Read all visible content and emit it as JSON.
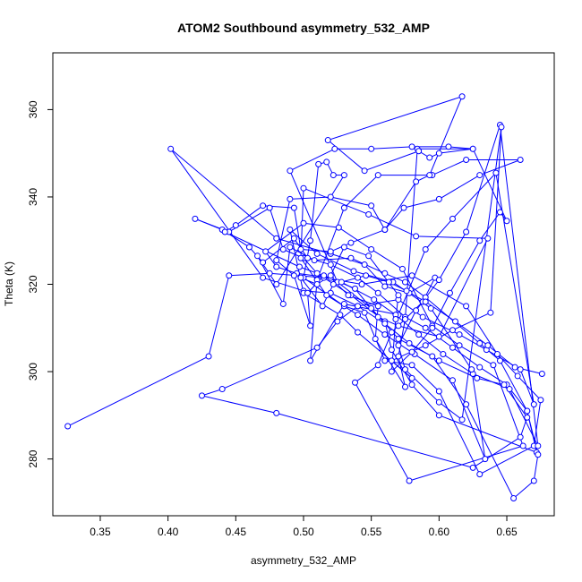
{
  "chart_data": {
    "type": "line",
    "title": "ATOM2 Southbound asymmetry_532_AMP",
    "xlabel": "asymmetry_532_AMP",
    "ylabel": "Theta (K)",
    "xlim": [
      0.315,
      0.685
    ],
    "ylim": [
      267,
      373
    ],
    "x_ticks": [
      0.35,
      0.4,
      0.45,
      0.5,
      0.55,
      0.6,
      0.65
    ],
    "x_tick_labels": [
      "0.35",
      "0.40",
      "0.45",
      "0.50",
      "0.55",
      "0.60",
      "0.65"
    ],
    "y_ticks": [
      280,
      300,
      320,
      340,
      360
    ],
    "y_tick_labels": [
      "280",
      "300",
      "320",
      "340",
      "360"
    ],
    "grid": false,
    "line_style": "overplotted",
    "color": "#0000ff",
    "series": [
      {
        "points": [
          [
            0.326,
            287.5
          ],
          [
            0.43,
            303.5
          ],
          [
            0.445,
            322.0
          ],
          [
            0.475,
            322.5
          ],
          [
            0.515,
            321.5
          ],
          [
            0.543,
            320.0
          ],
          [
            0.58,
            322.0
          ],
          [
            0.62,
            315.0
          ],
          [
            0.643,
            304.0
          ],
          [
            0.658,
            299.0
          ],
          [
            0.675,
            293.5
          ],
          [
            0.67,
            283.0
          ],
          [
            0.63,
            276.5
          ],
          [
            0.6,
            295.5
          ],
          [
            0.58,
            301.5
          ],
          [
            0.56,
            302.5
          ],
          [
            0.545,
            313.5
          ],
          [
            0.53,
            315.0
          ],
          [
            0.5,
            321.5
          ],
          [
            0.505,
            330.0
          ],
          [
            0.511,
            347.5
          ],
          [
            0.517,
            348.0
          ],
          [
            0.522,
            345.0
          ],
          [
            0.53,
            345.0
          ],
          [
            0.48,
            320.0
          ],
          [
            0.466,
            326.5
          ],
          [
            0.485,
            315.5
          ],
          [
            0.49,
            328.5
          ],
          [
            0.508,
            325.5
          ],
          [
            0.535,
            326.0
          ],
          [
            0.56,
            322.5
          ],
          [
            0.575,
            320.5
          ],
          [
            0.59,
            317.0
          ],
          [
            0.63,
            306.5
          ],
          [
            0.645,
            302.5
          ],
          [
            0.665,
            291.0
          ],
          [
            0.672,
            281.5
          ],
          [
            0.6,
            290.0
          ],
          [
            0.58,
            297.0
          ],
          [
            0.565,
            305.0
          ],
          [
            0.56,
            311.5
          ],
          [
            0.535,
            317.5
          ],
          [
            0.51,
            322.5
          ],
          [
            0.5,
            326.0
          ],
          [
            0.485,
            328.0
          ],
          [
            0.475,
            337.5
          ],
          [
            0.445,
            332.0
          ],
          [
            0.42,
            335.0
          ],
          [
            0.44,
            332.5
          ],
          [
            0.46,
            328.5
          ],
          [
            0.47,
            325.0
          ],
          [
            0.493,
            330.5
          ],
          [
            0.503,
            326.0
          ],
          [
            0.52,
            324.5
          ],
          [
            0.54,
            321.5
          ],
          [
            0.555,
            318.0
          ],
          [
            0.575,
            312.5
          ],
          [
            0.59,
            310.0
          ],
          [
            0.61,
            305.5
          ],
          [
            0.63,
            301.0
          ],
          [
            0.65,
            297.0
          ],
          [
            0.665,
            291.0
          ],
          [
            0.673,
            281.0
          ],
          [
            0.67,
            275.0
          ],
          [
            0.655,
            271.0
          ],
          [
            0.62,
            292.5
          ],
          [
            0.595,
            303.5
          ],
          [
            0.57,
            307.5
          ],
          [
            0.55,
            314.5
          ],
          [
            0.525,
            320.5
          ],
          [
            0.49,
            346.0
          ],
          [
            0.523,
            351.0
          ],
          [
            0.55,
            351.0
          ],
          [
            0.58,
            351.5
          ],
          [
            0.607,
            351.5
          ],
          [
            0.625,
            351.0
          ],
          [
            0.584,
            351.0
          ],
          [
            0.575,
            312.0
          ],
          [
            0.57,
            303.5
          ],
          [
            0.575,
            296.5
          ],
          [
            0.553,
            307.5
          ],
          [
            0.555,
            315.0
          ],
          [
            0.533,
            317.5
          ],
          [
            0.52,
            321.5
          ],
          [
            0.495,
            322.5
          ],
          [
            0.48,
            324.0
          ],
          [
            0.472,
            327.5
          ],
          [
            0.5,
            334.0
          ],
          [
            0.526,
            333.0
          ],
          [
            0.55,
            328.0
          ],
          [
            0.573,
            323.5
          ],
          [
            0.595,
            310.5
          ],
          [
            0.615,
            306.0
          ],
          [
            0.64,
            301.5
          ],
          [
            0.662,
            283.0
          ],
          [
            0.578,
            275.0
          ],
          [
            0.538,
            297.5
          ],
          [
            0.555,
            301.5
          ],
          [
            0.565,
            309.0
          ],
          [
            0.588,
            316.0
          ],
          [
            0.597,
            321.5
          ],
          [
            0.578,
            318.0
          ],
          [
            0.56,
            319.5
          ],
          [
            0.545,
            324.5
          ],
          [
            0.52,
            327.0
          ],
          [
            0.48,
            330.5
          ],
          [
            0.402,
            351.0
          ],
          [
            0.47,
            321.5
          ],
          [
            0.5,
            318.5
          ],
          [
            0.52,
            318.0
          ],
          [
            0.54,
            315.0
          ],
          [
            0.56,
            311.0
          ],
          [
            0.578,
            306.5
          ],
          [
            0.6,
            302.5
          ],
          [
            0.628,
            298.5
          ],
          [
            0.648,
            297.0
          ],
          [
            0.665,
            289.5
          ],
          [
            0.66,
            285.0
          ],
          [
            0.625,
            278.0
          ],
          [
            0.48,
            290.5
          ],
          [
            0.425,
            294.5
          ],
          [
            0.44,
            296.0
          ],
          [
            0.51,
            305.5
          ],
          [
            0.525,
            311.5
          ],
          [
            0.54,
            315.0
          ],
          [
            0.57,
            316.5
          ],
          [
            0.588,
            312.5
          ],
          [
            0.615,
            308.5
          ],
          [
            0.635,
            305.0
          ],
          [
            0.66,
            300.5
          ],
          [
            0.67,
            292.5
          ],
          [
            0.642,
            345.5
          ],
          [
            0.61,
            335.0
          ],
          [
            0.59,
            328.0
          ],
          [
            0.57,
            313.0
          ],
          [
            0.53,
            315.5
          ],
          [
            0.505,
            302.5
          ],
          [
            0.51,
            321.0
          ],
          [
            0.53,
            337.5
          ],
          [
            0.555,
            345.0
          ],
          [
            0.595,
            345.0
          ],
          [
            0.62,
            348.5
          ],
          [
            0.66,
            348.5
          ],
          [
            0.63,
            345.0
          ],
          [
            0.6,
            339.5
          ],
          [
            0.574,
            337.5
          ],
          [
            0.56,
            332.5
          ],
          [
            0.535,
            329.5
          ],
          [
            0.52,
            327.5
          ],
          [
            0.498,
            328.0
          ],
          [
            0.493,
            337.5
          ],
          [
            0.47,
            338.0
          ],
          [
            0.45,
            333.5
          ],
          [
            0.442,
            332.0
          ],
          [
            0.497,
            324.0
          ],
          [
            0.528,
            320.5
          ],
          [
            0.552,
            316.5
          ],
          [
            0.568,
            313.0
          ],
          [
            0.585,
            308.5
          ],
          [
            0.603,
            304.0
          ],
          [
            0.625,
            299.5
          ],
          [
            0.652,
            296.0
          ],
          [
            0.673,
            283.0
          ],
          [
            0.645,
            356.5
          ],
          [
            0.62,
            332.0
          ],
          [
            0.6,
            321.0
          ],
          [
            0.583,
            314.0
          ],
          [
            0.57,
            306.0
          ],
          [
            0.575,
            300.5
          ],
          [
            0.6,
            293.0
          ],
          [
            0.617,
            289.0
          ],
          [
            0.646,
            356.0
          ],
          [
            0.638,
            313.5
          ],
          [
            0.61,
            309.5
          ],
          [
            0.59,
            306.0
          ],
          [
            0.565,
            302.5
          ],
          [
            0.58,
            298.5
          ],
          [
            0.54,
            309.0
          ],
          [
            0.527,
            313.0
          ],
          [
            0.5,
            318.0
          ],
          [
            0.49,
            332.5
          ],
          [
            0.51,
            327.0
          ],
          [
            0.537,
            323.0
          ],
          [
            0.566,
            320.5
          ],
          [
            0.594,
            314.5
          ],
          [
            0.624,
            300.5
          ],
          [
            0.634,
            280.0
          ],
          [
            0.61,
            298.0
          ],
          [
            0.582,
            304.0
          ],
          [
            0.56,
            308.5
          ],
          [
            0.54,
            313.0
          ],
          [
            0.517,
            317.5
          ],
          [
            0.498,
            326.0
          ],
          [
            0.5,
            342.0
          ],
          [
            0.548,
            336.0
          ],
          [
            0.583,
            331.0
          ],
          [
            0.636,
            330.5
          ],
          [
            0.6,
            308.0
          ],
          [
            0.57,
            310.5
          ],
          [
            0.555,
            312.5
          ],
          [
            0.538,
            319.0
          ],
          [
            0.515,
            322.0
          ],
          [
            0.503,
            318.0
          ],
          [
            0.505,
            310.5
          ],
          [
            0.493,
            322.0
          ],
          [
            0.48,
            325.5
          ],
          [
            0.49,
            339.5
          ],
          [
            0.52,
            340.0
          ],
          [
            0.55,
            338.0
          ],
          [
            0.56,
            332.5
          ],
          [
            0.583,
            343.5
          ],
          [
            0.593,
            345.0
          ],
          [
            0.617,
            363.0
          ],
          [
            0.518,
            353.0
          ],
          [
            0.545,
            346.0
          ],
          [
            0.585,
            350.5
          ],
          [
            0.593,
            349.0
          ],
          [
            0.6,
            350.0
          ],
          [
            0.625,
            351.0
          ],
          [
            0.65,
            334.5
          ],
          [
            0.645,
            336.5
          ],
          [
            0.63,
            330.0
          ],
          [
            0.608,
            318.0
          ],
          [
            0.595,
            310.0
          ],
          [
            0.58,
            304.5
          ],
          [
            0.565,
            300.0
          ],
          [
            0.568,
            312.0
          ],
          [
            0.57,
            317.5
          ],
          [
            0.548,
            326.5
          ],
          [
            0.53,
            328.5
          ],
          [
            0.52,
            322.0
          ],
          [
            0.51,
            320.0
          ],
          [
            0.498,
            321.5
          ],
          [
            0.514,
            315.0
          ],
          [
            0.522,
            320.0
          ],
          [
            0.546,
            322.0
          ],
          [
            0.563,
            320.5
          ],
          [
            0.576,
            318.5
          ],
          [
            0.59,
            316.0
          ],
          [
            0.612,
            311.5
          ],
          [
            0.636,
            306.0
          ],
          [
            0.656,
            301.0
          ],
          [
            0.676,
            299.5
          ]
        ]
      }
    ]
  }
}
